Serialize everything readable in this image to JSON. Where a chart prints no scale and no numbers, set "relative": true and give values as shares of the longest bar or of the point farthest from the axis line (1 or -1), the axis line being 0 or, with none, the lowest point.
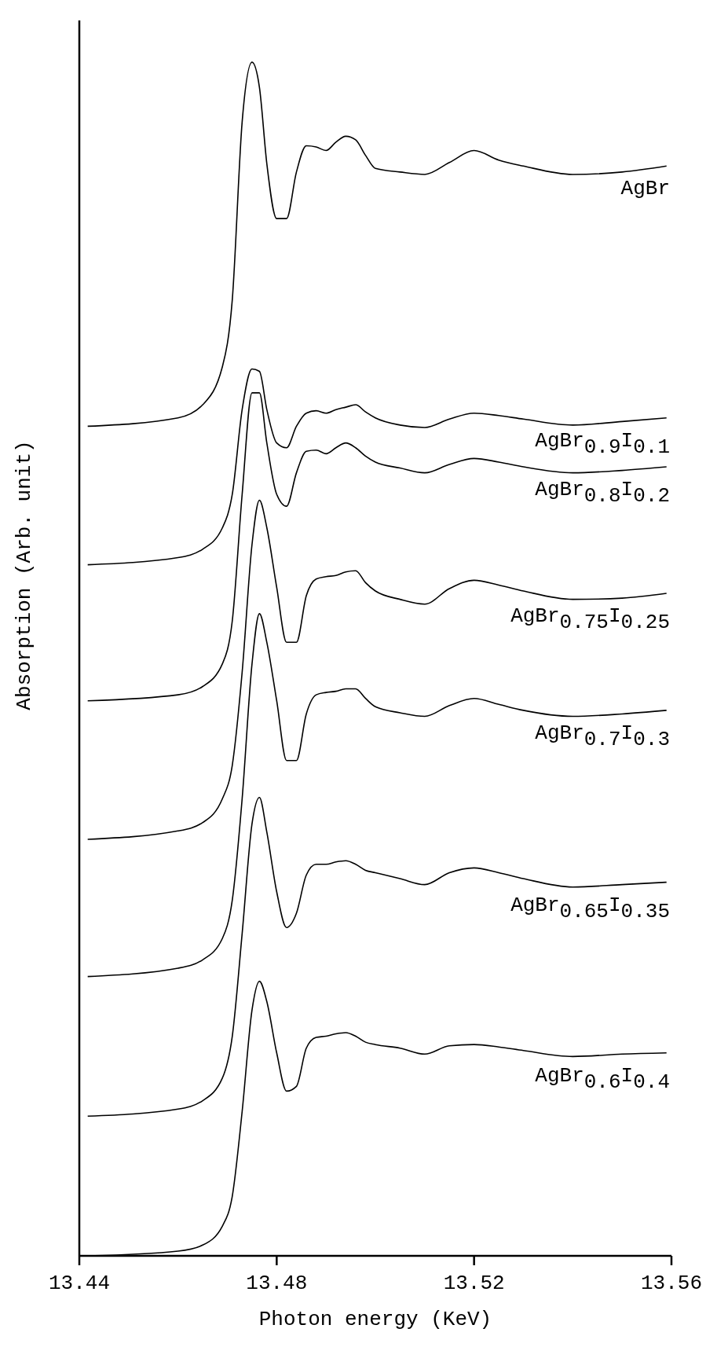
{
  "chart_data": {
    "type": "line",
    "relative": true,
    "xlabel": "Photon energy (KeV)",
    "ylabel": "Absorption (Arb. unit)",
    "xlim": [
      13.44,
      13.56
    ],
    "xticks": [
      13.44,
      13.48,
      13.52,
      13.56
    ],
    "legend": false,
    "marker": "none",
    "line_style": "solid",
    "x": [
      13.4417,
      13.46,
      13.465,
      13.469,
      13.471,
      13.473,
      13.475,
      13.4765,
      13.478,
      13.48,
      13.482,
      13.484,
      13.486,
      13.488,
      13.49,
      13.492,
      13.494,
      13.496,
      13.498,
      13.5,
      13.505,
      13.51,
      13.515,
      13.52,
      13.525,
      13.53,
      13.54,
      13.55,
      13.559
    ],
    "series": [
      {
        "name": "AgBr",
        "color": "#000000",
        "values": [
          0.695,
          0.702,
          0.713,
          0.745,
          0.801,
          0.95,
          1.0,
          0.979,
          0.915,
          0.869,
          0.869,
          0.908,
          0.93,
          0.929,
          0.926,
          0.933,
          0.938,
          0.935,
          0.922,
          0.911,
          0.908,
          0.906,
          0.916,
          0.926,
          0.918,
          0.913,
          0.906,
          0.908,
          0.913
        ]
      },
      {
        "name": "AgBr$_{0.9}$I$_{0.1}$",
        "color": "#000000",
        "values": [
          0.579,
          0.585,
          0.592,
          0.61,
          0.638,
          0.709,
          0.743,
          0.741,
          0.709,
          0.681,
          0.677,
          0.695,
          0.706,
          0.708,
          0.706,
          0.709,
          0.711,
          0.713,
          0.707,
          0.702,
          0.696,
          0.694,
          0.701,
          0.706,
          0.704,
          0.701,
          0.696,
          0.699,
          0.702
        ]
      },
      {
        "name": "AgBr$_{0.8}$I$_{0.2}$",
        "color": "#000000",
        "values": [
          0.465,
          0.47,
          0.477,
          0.496,
          0.532,
          0.638,
          0.723,
          0.723,
          0.681,
          0.638,
          0.628,
          0.656,
          0.674,
          0.675,
          0.672,
          0.677,
          0.681,
          0.677,
          0.67,
          0.665,
          0.66,
          0.656,
          0.663,
          0.668,
          0.665,
          0.661,
          0.656,
          0.658,
          0.661
        ]
      },
      {
        "name": "AgBr$_{0.75}$I$_{0.25}$",
        "color": "#000000",
        "values": [
          0.349,
          0.356,
          0.363,
          0.383,
          0.411,
          0.489,
          0.596,
          0.633,
          0.61,
          0.56,
          0.514,
          0.514,
          0.553,
          0.567,
          0.569,
          0.57,
          0.573,
          0.574,
          0.564,
          0.557,
          0.55,
          0.546,
          0.559,
          0.566,
          0.562,
          0.557,
          0.55,
          0.551,
          0.555
        ]
      },
      {
        "name": "AgBr$_{0.7}$I$_{0.3}$",
        "color": "#000000",
        "values": [
          0.234,
          0.241,
          0.248,
          0.266,
          0.298,
          0.383,
          0.496,
          0.538,
          0.514,
          0.465,
          0.415,
          0.415,
          0.454,
          0.47,
          0.472,
          0.473,
          0.475,
          0.475,
          0.467,
          0.46,
          0.455,
          0.452,
          0.461,
          0.467,
          0.462,
          0.457,
          0.452,
          0.454,
          0.457
        ]
      },
      {
        "name": "AgBr$_{0.65}$I$_{0.35}$",
        "color": "#000000",
        "values": [
          0.117,
          0.123,
          0.13,
          0.149,
          0.184,
          0.27,
          0.362,
          0.384,
          0.355,
          0.305,
          0.275,
          0.287,
          0.319,
          0.328,
          0.328,
          0.33,
          0.331,
          0.328,
          0.323,
          0.321,
          0.316,
          0.311,
          0.321,
          0.325,
          0.321,
          0.316,
          0.309,
          0.311,
          0.313
        ]
      },
      {
        "name": "AgBr$_{0.6}$I$_{0.4}$",
        "color": "#000000",
        "values": [
          0,
          0.004,
          0.009,
          0.025,
          0.05,
          0.121,
          0.206,
          0.23,
          0.213,
          0.17,
          0.138,
          0.142,
          0.174,
          0.183,
          0.184,
          0.186,
          0.187,
          0.184,
          0.179,
          0.177,
          0.174,
          0.169,
          0.176,
          0.177,
          0.175,
          0.172,
          0.167,
          0.169,
          0.17
        ]
      }
    ]
  }
}
